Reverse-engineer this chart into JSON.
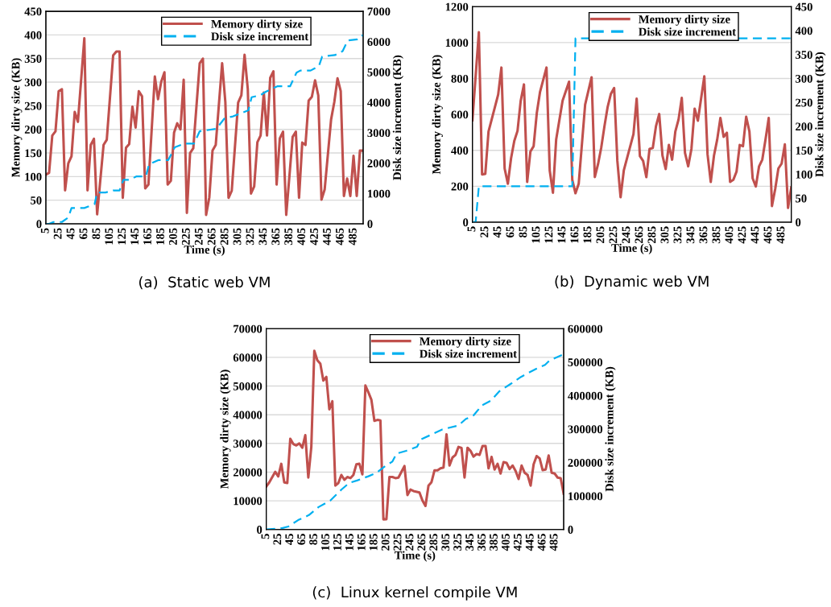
{
  "chart_data": [
    {
      "type": "line",
      "xlabel": "Time (s)",
      "ylabel": "Memory dirty size (KB)",
      "y2label": "Disk size increment (KB)",
      "annotations": [
        "(a)  Static web VM"
      ],
      "xlim": [
        5,
        500
      ],
      "xticks": [
        5,
        25,
        45,
        65,
        85,
        105,
        125,
        145,
        165,
        185,
        205,
        225,
        245,
        265,
        285,
        305,
        325,
        345,
        365,
        385,
        405,
        425,
        445,
        465,
        485
      ],
      "ylim": [
        0,
        450
      ],
      "yticks": [
        0,
        50,
        100,
        150,
        200,
        250,
        300,
        350,
        400,
        450
      ],
      "y2lim": [
        0,
        7000
      ],
      "y2ticks": [
        0,
        1000,
        2000,
        3000,
        4000,
        5000,
        6000,
        7000
      ],
      "grid": "y",
      "legend": "top",
      "series": [
        {
          "name": "Memory dirty size",
          "color": "#c0504d",
          "line_style": "solid",
          "x": [
            5,
            10,
            15,
            20,
            25,
            30,
            35,
            40,
            45,
            50,
            55,
            65,
            70,
            75,
            80,
            85,
            95,
            100,
            110,
            115,
            120,
            125,
            130,
            135,
            140,
            145,
            150,
            155,
            160,
            165,
            175,
            180,
            185,
            190,
            195,
            200,
            205,
            210,
            215,
            220,
            225,
            230,
            235,
            245,
            250,
            255,
            260,
            265,
            270,
            280,
            285,
            290,
            295,
            305,
            310,
            315,
            320,
            325,
            330,
            335,
            340,
            345,
            350,
            355,
            360,
            365,
            370,
            375,
            380,
            390,
            395,
            400,
            405,
            410,
            415,
            420,
            425,
            430,
            435,
            440,
            450,
            455,
            460,
            465,
            470,
            475,
            480,
            485,
            490,
            495,
            500
          ],
          "values": [
            104,
            108,
            187,
            196,
            281,
            285,
            71,
            128,
            143,
            237,
            216,
            393,
            71,
            167,
            180,
            20,
            167,
            178,
            357,
            365,
            365,
            55,
            161,
            169,
            248,
            204,
            281,
            270,
            75,
            83,
            312,
            264,
            301,
            321,
            83,
            91,
            193,
            213,
            200,
            305,
            23,
            150,
            160,
            340,
            350,
            19,
            56,
            155,
            167,
            340,
            258,
            55,
            70,
            257,
            272,
            358,
            286,
            64,
            79,
            173,
            187,
            278,
            187,
            309,
            323,
            83,
            181,
            195,
            19,
            184,
            195,
            55,
            172,
            167,
            261,
            269,
            304,
            272,
            51,
            73,
            221,
            258,
            308,
            281,
            59,
            96,
            59,
            144,
            59,
            155,
            155
          ]
        },
        {
          "name": "Disk size increment",
          "color": "#00b0f0",
          "line_style": "dashed",
          "axis": "y2",
          "x": [
            5,
            10,
            17,
            30,
            40,
            45,
            65,
            81,
            85,
            98,
            110,
            120,
            126,
            136,
            146,
            161,
            166,
            181,
            196,
            206,
            221,
            236,
            245,
            271,
            284,
            297,
            321,
            326,
            340,
            348,
            366,
            386,
            396,
            402,
            418,
            431,
            436,
            456,
            468,
            476,
            491,
            500
          ],
          "values": [
            0,
            0,
            60,
            60,
            210,
            520,
            520,
            650,
            1030,
            1030,
            1100,
            1100,
            1450,
            1450,
            1560,
            1560,
            1960,
            2100,
            2100,
            2520,
            2640,
            2640,
            3050,
            3130,
            3480,
            3540,
            3740,
            4170,
            4240,
            4350,
            4530,
            4530,
            4980,
            5050,
            5050,
            5200,
            5510,
            5560,
            5690,
            6040,
            6080,
            6220
          ]
        }
      ]
    },
    {
      "type": "line",
      "xlabel": "Time (s)",
      "ylabel": "Memory dirty size (KB)",
      "y2label": "Disk size increment (KB)",
      "annotations": [
        "(b)  Dynamic web VM"
      ],
      "xlim": [
        5,
        500
      ],
      "xticks": [
        5,
        25,
        45,
        65,
        85,
        105,
        125,
        145,
        165,
        185,
        205,
        225,
        245,
        265,
        285,
        305,
        325,
        345,
        365,
        385,
        405,
        425,
        445,
        465,
        485
      ],
      "ylim": [
        0,
        1200
      ],
      "yticks": [
        0,
        200,
        400,
        600,
        800,
        1000,
        1200
      ],
      "y2lim": [
        0,
        450
      ],
      "y2ticks": [
        0,
        50,
        100,
        150,
        200,
        250,
        300,
        350,
        400,
        450
      ],
      "grid": "y",
      "legend": "top",
      "series": [
        {
          "name": "Memory dirty size",
          "color": "#c0504d",
          "line_style": "solid",
          "x": [
            5,
            15,
            20,
            25,
            30,
            45,
            50,
            55,
            60,
            65,
            70,
            75,
            80,
            85,
            90,
            95,
            100,
            105,
            110,
            120,
            125,
            130,
            135,
            145,
            150,
            155,
            160,
            165,
            170,
            180,
            190,
            195,
            200,
            205,
            210,
            215,
            220,
            225,
            230,
            235,
            240,
            245,
            255,
            260,
            265,
            270,
            275,
            280,
            285,
            290,
            295,
            300,
            305,
            310,
            315,
            320,
            325,
            330,
            335,
            340,
            345,
            350,
            355,
            365,
            370,
            375,
            380,
            385,
            390,
            395,
            400,
            405,
            410,
            415,
            420,
            425,
            430,
            435,
            440,
            445,
            450,
            455,
            460,
            465,
            470,
            475,
            480,
            485,
            490,
            495,
            500
          ],
          "values": [
            568,
            1058,
            266,
            269,
            505,
            711,
            861,
            299,
            214,
            356,
            453,
            508,
            677,
            767,
            224,
            393,
            423,
            610,
            726,
            861,
            288,
            164,
            460,
            677,
            729,
            782,
            236,
            161,
            214,
            655,
            807,
            251,
            323,
            416,
            535,
            643,
            715,
            747,
            341,
            139,
            288,
            356,
            490,
            688,
            368,
            341,
            251,
            408,
            413,
            535,
            602,
            371,
            296,
            430,
            348,
            505,
            572,
            692,
            386,
            311,
            408,
            632,
            565,
            812,
            378,
            224,
            371,
            460,
            580,
            475,
            498,
            224,
            236,
            281,
            430,
            423,
            587,
            505,
            244,
            199,
            311,
            348,
            460,
            580,
            90,
            184,
            299,
            326,
            433,
            79,
            194
          ]
        },
        {
          "name": "Disk size increment",
          "color": "#00b0f0",
          "line_style": "dashed",
          "axis": "y2",
          "x": [
            5,
            10,
            15,
            160,
            165,
            500
          ],
          "values": [
            0,
            0,
            75,
            75,
            384,
            384
          ]
        }
      ]
    },
    {
      "type": "line",
      "xlabel": "Time (s)",
      "ylabel": "Memory dirty size (KB)",
      "y2label": "Disk size increment (KB)",
      "annotations": [
        "(c)  Linux kernel compile VM"
      ],
      "xlim": [
        5,
        500
      ],
      "xticks": [
        5,
        25,
        45,
        65,
        85,
        105,
        125,
        145,
        165,
        185,
        205,
        225,
        245,
        265,
        285,
        305,
        325,
        345,
        365,
        385,
        405,
        425,
        445,
        465,
        485
      ],
      "ylim": [
        0,
        70000
      ],
      "yticks": [
        0,
        10000,
        20000,
        30000,
        40000,
        50000,
        60000,
        70000
      ],
      "y2lim": [
        0,
        600000
      ],
      "y2ticks": [
        0,
        100000,
        200000,
        300000,
        400000,
        500000,
        600000
      ],
      "grid": "y",
      "legend": "top",
      "series": [
        {
          "name": "Memory dirty size",
          "color": "#c0504d",
          "line_style": "solid",
          "x": [
            5,
            10,
            20,
            25,
            30,
            35,
            40,
            45,
            50,
            55,
            60,
            65,
            70,
            75,
            80,
            85,
            90,
            95,
            100,
            105,
            110,
            115,
            120,
            125,
            130,
            135,
            140,
            145,
            150,
            155,
            160,
            165,
            170,
            175,
            180,
            185,
            190,
            195,
            200,
            205,
            210,
            215,
            220,
            225,
            235,
            240,
            245,
            250,
            260,
            265,
            270,
            275,
            280,
            285,
            290,
            295,
            300,
            305,
            310,
            315,
            320,
            325,
            330,
            335,
            340,
            345,
            350,
            355,
            360,
            365,
            370,
            375,
            380,
            385,
            390,
            395,
            400,
            405,
            410,
            415,
            420,
            425,
            430,
            435,
            440,
            445,
            450,
            455,
            460,
            465,
            470,
            475,
            480,
            485,
            490,
            495,
            500
          ],
          "values": [
            15000,
            16400,
            20100,
            18500,
            22900,
            16400,
            16200,
            31600,
            29800,
            29300,
            30000,
            28500,
            32900,
            18100,
            28800,
            62300,
            59000,
            57800,
            51900,
            53200,
            41900,
            44700,
            15300,
            16200,
            19000,
            17300,
            18300,
            17900,
            19000,
            22700,
            22900,
            19200,
            50200,
            47800,
            45200,
            37900,
            38200,
            38000,
            3500,
            3600,
            18300,
            18300,
            17900,
            18100,
            22100,
            12000,
            13900,
            13400,
            12900,
            10100,
            8200,
            15300,
            16500,
            20600,
            20600,
            21300,
            21600,
            33200,
            22300,
            25100,
            26000,
            28800,
            28400,
            18100,
            28500,
            27400,
            25400,
            26300,
            26000,
            29100,
            29100,
            21300,
            25300,
            20900,
            22900,
            19500,
            23500,
            23200,
            21100,
            22300,
            20400,
            17600,
            22300,
            19800,
            19000,
            15300,
            22700,
            25600,
            24800,
            20700,
            20900,
            25800,
            19800,
            19500,
            18100,
            17900,
            12500
          ]
        },
        {
          "name": "Disk size increment",
          "color": "#00b0f0",
          "line_style": "dashed",
          "axis": "y2",
          "x": [
            5,
            31,
            42,
            58,
            76,
            92,
            112,
            130,
            143,
            157,
            175,
            188,
            204,
            215,
            222,
            238,
            256,
            262,
            278,
            298,
            325,
            337,
            350,
            364,
            379,
            393,
            411,
            429,
            454,
            469,
            476,
            500
          ],
          "values": [
            0,
            4000,
            9000,
            28000,
            43000,
            67000,
            87000,
            119000,
            139000,
            147000,
            159000,
            169000,
            191000,
            203000,
            227000,
            235000,
            247000,
            269000,
            282000,
            299000,
            311000,
            330000,
            341000,
            371000,
            385000,
            413000,
            434000,
            456000,
            480000,
            492000,
            504000,
            524000
          ]
        }
      ]
    }
  ]
}
